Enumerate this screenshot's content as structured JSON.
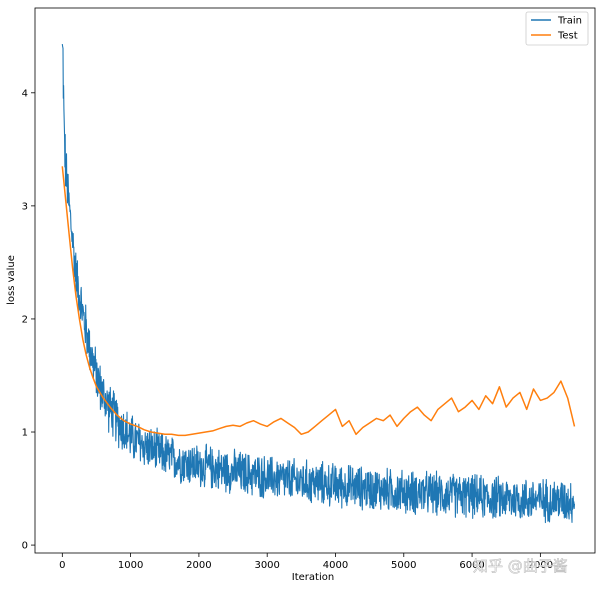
{
  "chart_data": {
    "type": "line",
    "title": "",
    "xlabel": "Iteration",
    "ylabel": "loss value",
    "xlim": [
      -400,
      7800
    ],
    "ylim": [
      -0.07,
      4.75
    ],
    "x_ticks": [
      0,
      1000,
      2000,
      3000,
      4000,
      5000,
      6000,
      7000
    ],
    "x_tick_labels": [
      "0",
      "1000",
      "2000",
      "3000",
      "4000",
      "5000",
      "6000",
      "7000"
    ],
    "y_ticks": [
      0,
      1,
      2,
      3,
      4
    ],
    "y_tick_labels": [
      "0",
      "1",
      "2",
      "3",
      "4"
    ],
    "grid": false,
    "legend_position": "top-right",
    "series": [
      {
        "name": "Train",
        "color": "#1f77b4",
        "noisy": true,
        "x": [
          0,
          10,
          25,
          50,
          100,
          150,
          200,
          300,
          400,
          500,
          600,
          700,
          800,
          900,
          1000,
          1200,
          1400,
          1600,
          1800,
          2000,
          2500,
          3000,
          3500,
          4000,
          4500,
          5000,
          5500,
          6000,
          6500,
          7000,
          7500
        ],
        "values": [
          4.4,
          4.3,
          3.7,
          3.3,
          3.0,
          2.7,
          2.4,
          2.05,
          1.75,
          1.5,
          1.32,
          1.2,
          1.1,
          1.02,
          0.95,
          0.88,
          0.82,
          0.77,
          0.73,
          0.7,
          0.65,
          0.6,
          0.56,
          0.53,
          0.5,
          0.47,
          0.45,
          0.43,
          0.41,
          0.4,
          0.39
        ],
        "noise_amplitude": [
          0.15,
          0.3,
          0.3,
          0.3,
          0.25,
          0.25,
          0.25,
          0.25,
          0.25,
          0.25,
          0.25,
          0.25,
          0.25,
          0.25,
          0.25,
          0.22,
          0.22,
          0.22,
          0.22,
          0.22,
          0.22,
          0.22,
          0.22,
          0.22,
          0.22,
          0.22,
          0.22,
          0.22,
          0.22,
          0.22,
          0.22
        ]
      },
      {
        "name": "Test",
        "color": "#ff7f0e",
        "x": [
          0,
          50,
          100,
          150,
          200,
          250,
          300,
          350,
          400,
          450,
          500,
          600,
          700,
          800,
          900,
          1000,
          1100,
          1200,
          1300,
          1400,
          1500,
          1600,
          1700,
          1800,
          1900,
          2000,
          2100,
          2200,
          2300,
          2400,
          2500,
          2600,
          2700,
          2800,
          2900,
          3000,
          3100,
          3200,
          3300,
          3400,
          3500,
          3600,
          3700,
          3800,
          3900,
          4000,
          4100,
          4200,
          4300,
          4400,
          4500,
          4600,
          4700,
          4800,
          4900,
          5000,
          5100,
          5200,
          5300,
          5400,
          5500,
          5600,
          5700,
          5800,
          5900,
          6000,
          6100,
          6200,
          6300,
          6400,
          6500,
          6600,
          6700,
          6800,
          6900,
          7000,
          7100,
          7200,
          7300,
          7400,
          7500
        ],
        "values": [
          3.35,
          3.05,
          2.75,
          2.45,
          2.2,
          2.0,
          1.82,
          1.68,
          1.57,
          1.48,
          1.4,
          1.3,
          1.22,
          1.15,
          1.1,
          1.07,
          1.05,
          1.02,
          1.0,
          0.99,
          0.98,
          0.98,
          0.97,
          0.97,
          0.98,
          0.99,
          1.0,
          1.01,
          1.03,
          1.05,
          1.06,
          1.05,
          1.08,
          1.1,
          1.07,
          1.05,
          1.09,
          1.12,
          1.08,
          1.04,
          0.98,
          1.0,
          1.05,
          1.1,
          1.15,
          1.2,
          1.05,
          1.1,
          0.98,
          1.04,
          1.08,
          1.12,
          1.1,
          1.15,
          1.05,
          1.12,
          1.18,
          1.22,
          1.15,
          1.1,
          1.2,
          1.25,
          1.3,
          1.18,
          1.22,
          1.28,
          1.2,
          1.32,
          1.25,
          1.4,
          1.22,
          1.3,
          1.35,
          1.2,
          1.38,
          1.28,
          1.3,
          1.35,
          1.45,
          1.3,
          1.05
        ]
      }
    ]
  },
  "watermark": "知乎 @曲子酱"
}
